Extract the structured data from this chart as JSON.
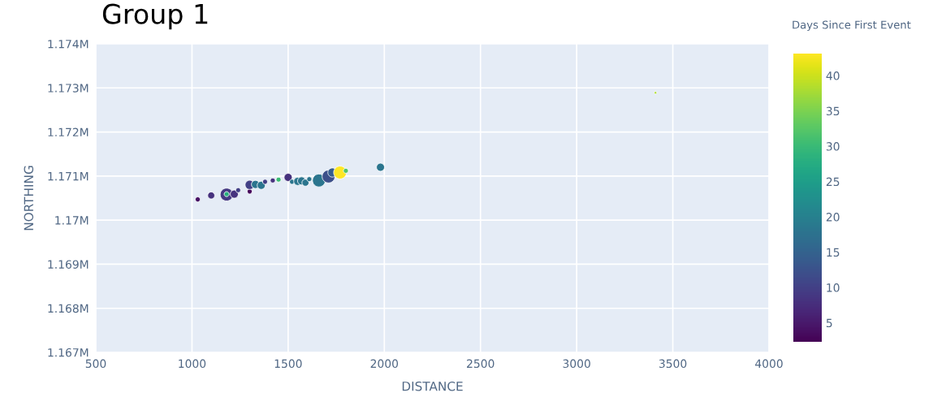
{
  "chart_data": {
    "type": "bubble",
    "title": "Group 1",
    "xlabel": "DISTANCE",
    "ylabel": "NORTHING",
    "clabel": "Days Since First Event",
    "x": [
      1030,
      1100,
      1180,
      1180,
      1220,
      1240,
      1300,
      1300,
      1330,
      1360,
      1380,
      1420,
      1450,
      1500,
      1520,
      1550,
      1570,
      1590,
      1610,
      1660,
      1710,
      1730,
      1770,
      1800,
      1980,
      3410
    ],
    "values": [
      1170470,
      1170560,
      1170580,
      1170590,
      1170590,
      1170680,
      1170650,
      1170800,
      1170810,
      1170790,
      1170870,
      1170900,
      1170920,
      1170970,
      1170870,
      1170880,
      1170890,
      1170850,
      1170930,
      1170900,
      1170990,
      1171080,
      1171080,
      1171120,
      1171200,
      1172890
    ],
    "cvalues": [
      4,
      8,
      9,
      28,
      8,
      10,
      3,
      10,
      18,
      18,
      10,
      8,
      30,
      8,
      18,
      18,
      18,
      18,
      18,
      18,
      12,
      14,
      43,
      32,
      18,
      38
    ],
    "sizes": [
      0.15,
      0.3,
      1,
      0.15,
      0.4,
      0.15,
      0.15,
      0.5,
      0.4,
      0.4,
      0.15,
      0.15,
      0.15,
      0.4,
      0.15,
      0.4,
      0.4,
      0.3,
      0.15,
      1,
      1,
      0.5,
      1,
      0.15,
      0.4,
      0.04
    ],
    "clim": [
      2.2,
      43
    ],
    "cticks": [
      5,
      10,
      15,
      20,
      25,
      30,
      35,
      40
    ],
    "xlim": [
      500,
      4000
    ],
    "xticks": [
      500,
      1000,
      1500,
      2000,
      2500,
      3000,
      3500,
      4000
    ],
    "ylim": [
      1167000,
      1174000
    ],
    "yticks": [
      {
        "value": 1167000,
        "label": "1.167M"
      },
      {
        "value": 1168000,
        "label": "1.168M"
      },
      {
        "value": 1169000,
        "label": "1.169M"
      },
      {
        "value": 1170000,
        "label": "1.17M"
      },
      {
        "value": 1171000,
        "label": "1.171M"
      },
      {
        "value": 1172000,
        "label": "1.172M"
      },
      {
        "value": 1173000,
        "label": "1.173M"
      },
      {
        "value": 1174000,
        "label": "1.174M"
      }
    ],
    "grid": true
  }
}
